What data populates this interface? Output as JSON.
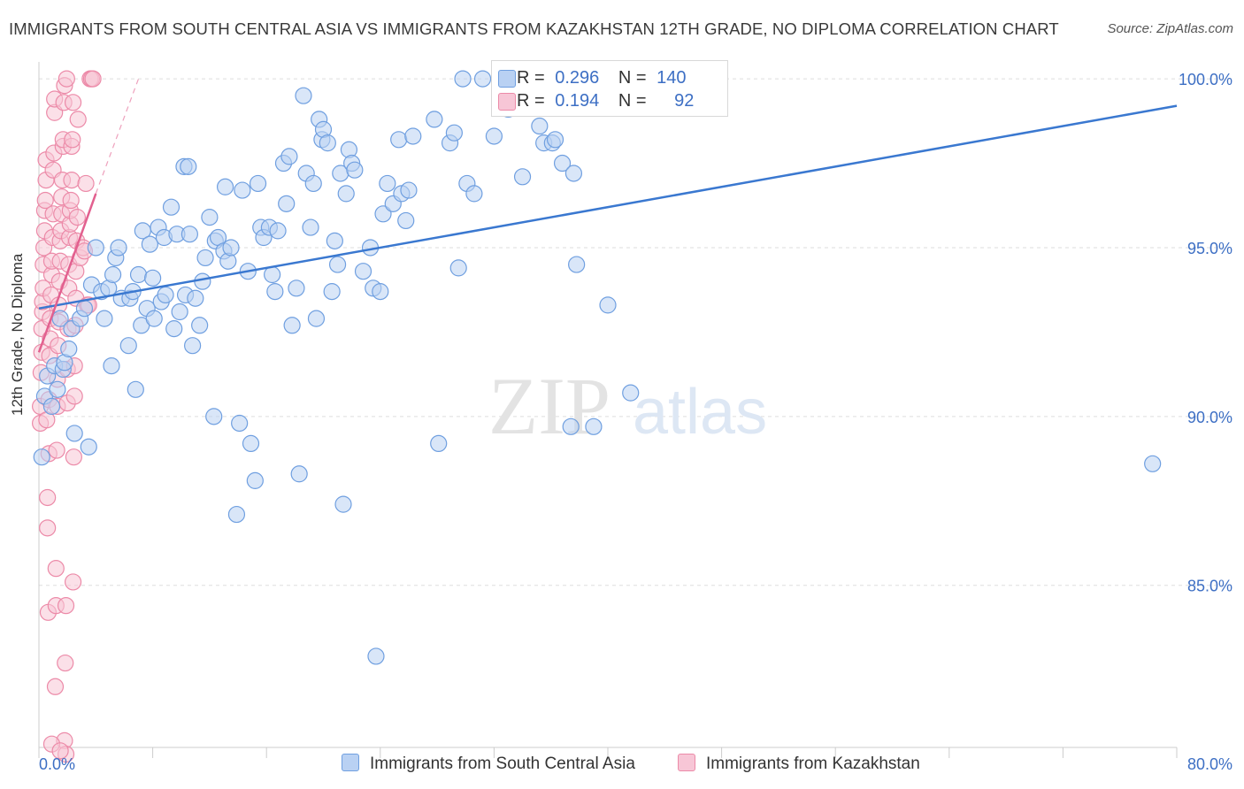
{
  "title": "IMMIGRANTS FROM SOUTH CENTRAL ASIA VS IMMIGRANTS FROM KAZAKHSTAN 12TH GRADE, NO DIPLOMA CORRELATION CHART",
  "source": "Source: ZipAtlas.com",
  "watermark": {
    "zip": "ZIP",
    "atlas": "atlas"
  },
  "colors": {
    "blue": "#6f9fe0",
    "blue_fill": "#b9d1f3",
    "blue_line": "#3a78d0",
    "pink": "#ec8aa8",
    "pink_fill": "#f7c6d6",
    "pink_line": "#e2608f",
    "axis_label": "#3d6fc4",
    "grid": "#dddddd"
  },
  "legend": {
    "rows": [
      {
        "r_label": "R =",
        "r_value": "0.296",
        "n_label": "N =",
        "n_value": "140",
        "swatch": "blue"
      },
      {
        "r_label": "R =",
        "r_value": "0.194",
        "n_label": "N =",
        "n_value": "92",
        "swatch": "pink"
      }
    ]
  },
  "bottom_legend": [
    {
      "label": "Immigrants from South Central Asia",
      "swatch": "blue"
    },
    {
      "label": "Immigrants from Kazakhstan",
      "swatch": "pink"
    }
  ],
  "chart_data": {
    "type": "scatter",
    "title": "IMMIGRANTS FROM SOUTH CENTRAL ASIA VS IMMIGRANTS FROM KAZAKHSTAN 12TH GRADE, NO DIPLOMA CORRELATION CHART",
    "xlabel": "",
    "ylabel": "12th Grade, No Diploma",
    "xlim": [
      0,
      80
    ],
    "ylim": [
      80.2,
      100.5
    ],
    "x_tick_labels": [
      "0.0%",
      "80.0%"
    ],
    "y_ticks": [
      85,
      90,
      95,
      100
    ],
    "y_tick_labels": [
      "85.0%",
      "90.0%",
      "95.0%",
      "100.0%"
    ],
    "series": [
      {
        "name": "Immigrants from South Central Asia",
        "color": "blue",
        "trend": {
          "x": [
            0,
            80
          ],
          "y": [
            93.2,
            99.2
          ],
          "style": "solid"
        },
        "points": [
          [
            0.2,
            88.8
          ],
          [
            0.4,
            90.6
          ],
          [
            0.6,
            91.2
          ],
          [
            0.9,
            90.3
          ],
          [
            1.1,
            91.5
          ],
          [
            1.3,
            90.8
          ],
          [
            1.5,
            92.9
          ],
          [
            1.7,
            91.4
          ],
          [
            1.8,
            91.6
          ],
          [
            2.1,
            92.0
          ],
          [
            2.3,
            92.6
          ],
          [
            2.5,
            89.5
          ],
          [
            2.9,
            92.9
          ],
          [
            3.2,
            93.2
          ],
          [
            3.5,
            89.1
          ],
          [
            3.7,
            93.9
          ],
          [
            4.0,
            95.0
          ],
          [
            4.4,
            93.7
          ],
          [
            4.6,
            92.9
          ],
          [
            4.9,
            93.8
          ],
          [
            5.1,
            91.5
          ],
          [
            5.2,
            94.2
          ],
          [
            5.4,
            94.7
          ],
          [
            5.6,
            95.0
          ],
          [
            5.8,
            93.5
          ],
          [
            6.4,
            93.5
          ],
          [
            6.3,
            92.1
          ],
          [
            6.6,
            93.7
          ],
          [
            6.8,
            90.8
          ],
          [
            7.0,
            94.2
          ],
          [
            7.2,
            92.7
          ],
          [
            7.3,
            95.5
          ],
          [
            7.6,
            93.2
          ],
          [
            7.8,
            95.1
          ],
          [
            8.0,
            94.1
          ],
          [
            8.1,
            92.9
          ],
          [
            8.4,
            95.6
          ],
          [
            8.6,
            93.4
          ],
          [
            8.8,
            95.3
          ],
          [
            8.9,
            93.6
          ],
          [
            9.3,
            96.2
          ],
          [
            9.5,
            92.6
          ],
          [
            9.7,
            95.4
          ],
          [
            9.9,
            93.1
          ],
          [
            10.2,
            97.4
          ],
          [
            10.3,
            93.6
          ],
          [
            10.5,
            97.4
          ],
          [
            10.6,
            95.4
          ],
          [
            10.8,
            92.1
          ],
          [
            11.0,
            93.5
          ],
          [
            11.3,
            92.7
          ],
          [
            11.5,
            94.0
          ],
          [
            11.7,
            94.7
          ],
          [
            12.0,
            95.9
          ],
          [
            12.3,
            90.0
          ],
          [
            12.4,
            95.2
          ],
          [
            12.6,
            95.3
          ],
          [
            13.0,
            94.9
          ],
          [
            13.1,
            96.8
          ],
          [
            13.3,
            94.6
          ],
          [
            13.5,
            95.0
          ],
          [
            13.9,
            87.1
          ],
          [
            14.1,
            89.8
          ],
          [
            14.3,
            96.7
          ],
          [
            14.7,
            94.3
          ],
          [
            14.9,
            89.2
          ],
          [
            15.2,
            88.1
          ],
          [
            15.4,
            96.9
          ],
          [
            15.6,
            95.6
          ],
          [
            15.8,
            95.3
          ],
          [
            16.2,
            95.6
          ],
          [
            16.4,
            94.2
          ],
          [
            16.6,
            93.7
          ],
          [
            16.8,
            95.5
          ],
          [
            17.2,
            97.5
          ],
          [
            17.4,
            96.3
          ],
          [
            17.6,
            97.7
          ],
          [
            17.8,
            92.7
          ],
          [
            18.1,
            93.8
          ],
          [
            18.3,
            88.3
          ],
          [
            18.6,
            99.5
          ],
          [
            18.8,
            97.2
          ],
          [
            19.1,
            95.6
          ],
          [
            19.3,
            96.9
          ],
          [
            19.5,
            92.9
          ],
          [
            19.7,
            98.8
          ],
          [
            19.9,
            98.2
          ],
          [
            20.0,
            98.5
          ],
          [
            20.3,
            98.1
          ],
          [
            20.6,
            93.7
          ],
          [
            20.8,
            95.2
          ],
          [
            21.0,
            94.5
          ],
          [
            21.2,
            97.2
          ],
          [
            21.4,
            87.4
          ],
          [
            21.6,
            96.6
          ],
          [
            21.8,
            97.9
          ],
          [
            22.0,
            97.5
          ],
          [
            22.2,
            97.3
          ],
          [
            22.8,
            94.3
          ],
          [
            23.3,
            95.0
          ],
          [
            23.5,
            93.8
          ],
          [
            23.7,
            82.9
          ],
          [
            24.0,
            93.7
          ],
          [
            24.2,
            96.0
          ],
          [
            24.5,
            96.9
          ],
          [
            24.9,
            96.3
          ],
          [
            25.3,
            98.2
          ],
          [
            25.5,
            96.6
          ],
          [
            25.8,
            95.8
          ],
          [
            26.0,
            96.7
          ],
          [
            26.3,
            98.3
          ],
          [
            27.8,
            98.8
          ],
          [
            28.1,
            89.2
          ],
          [
            28.9,
            98.1
          ],
          [
            29.2,
            98.4
          ],
          [
            29.5,
            94.4
          ],
          [
            29.8,
            100.0
          ],
          [
            30.1,
            96.9
          ],
          [
            30.6,
            96.6
          ],
          [
            31.2,
            100.0
          ],
          [
            32.0,
            98.3
          ],
          [
            33.0,
            99.1
          ],
          [
            34.0,
            97.1
          ],
          [
            35.2,
            98.6
          ],
          [
            35.5,
            98.1
          ],
          [
            36.1,
            98.1
          ],
          [
            36.3,
            98.2
          ],
          [
            36.8,
            97.5
          ],
          [
            37.4,
            89.7
          ],
          [
            37.6,
            97.2
          ],
          [
            37.8,
            94.5
          ],
          [
            39.0,
            89.7
          ],
          [
            40.0,
            93.3
          ],
          [
            41.6,
            90.7
          ],
          [
            78.3,
            88.6
          ]
        ]
      },
      {
        "name": "Immigrants from Kazakhstan",
        "color": "pink",
        "trend": {
          "x": [
            0,
            4.0
          ],
          "y": [
            91.9,
            96.6
          ],
          "style": "solid",
          "extension": {
            "x": [
              4.0,
              7.0
            ],
            "y": [
              96.6,
              100.0
            ],
            "style": "dashed"
          }
        },
        "points": [
          [
            0.1,
            89.8
          ],
          [
            0.1,
            90.3
          ],
          [
            0.15,
            91.3
          ],
          [
            0.2,
            91.9
          ],
          [
            0.2,
            92.6
          ],
          [
            0.25,
            93.1
          ],
          [
            0.25,
            93.4
          ],
          [
            0.3,
            93.8
          ],
          [
            0.3,
            94.5
          ],
          [
            0.35,
            95.0
          ],
          [
            0.4,
            95.5
          ],
          [
            0.4,
            96.1
          ],
          [
            0.45,
            96.4
          ],
          [
            0.5,
            97.0
          ],
          [
            0.5,
            97.6
          ],
          [
            0.55,
            89.9
          ],
          [
            0.6,
            86.7
          ],
          [
            0.6,
            87.6
          ],
          [
            0.65,
            84.2
          ],
          [
            0.7,
            88.9
          ],
          [
            0.7,
            90.5
          ],
          [
            0.75,
            91.8
          ],
          [
            0.8,
            92.3
          ],
          [
            0.8,
            92.9
          ],
          [
            0.85,
            93.6
          ],
          [
            0.9,
            94.2
          ],
          [
            0.9,
            94.6
          ],
          [
            0.95,
            95.3
          ],
          [
            1.0,
            96.0
          ],
          [
            1.0,
            97.3
          ],
          [
            1.05,
            97.8
          ],
          [
            1.1,
            99.0
          ],
          [
            1.1,
            99.4
          ],
          [
            1.15,
            82.0
          ],
          [
            1.2,
            85.5
          ],
          [
            1.2,
            84.4
          ],
          [
            1.25,
            89.0
          ],
          [
            1.3,
            90.3
          ],
          [
            1.3,
            91.1
          ],
          [
            1.35,
            92.1
          ],
          [
            1.4,
            92.8
          ],
          [
            1.4,
            93.3
          ],
          [
            1.45,
            94.0
          ],
          [
            1.5,
            94.6
          ],
          [
            1.5,
            95.2
          ],
          [
            1.55,
            95.5
          ],
          [
            1.6,
            96.0
          ],
          [
            1.6,
            96.5
          ],
          [
            1.65,
            97.0
          ],
          [
            1.7,
            98.0
          ],
          [
            1.7,
            98.2
          ],
          [
            1.75,
            99.3
          ],
          [
            1.8,
            99.8
          ],
          [
            1.8,
            80.4
          ],
          [
            1.85,
            82.7
          ],
          [
            1.9,
            84.4
          ],
          [
            1.9,
            80.0
          ],
          [
            1.95,
            100.0
          ],
          [
            2.0,
            90.4
          ],
          [
            2.0,
            91.4
          ],
          [
            2.05,
            92.6
          ],
          [
            2.1,
            93.8
          ],
          [
            2.1,
            94.5
          ],
          [
            2.15,
            95.3
          ],
          [
            2.2,
            95.7
          ],
          [
            2.2,
            96.1
          ],
          [
            2.25,
            96.4
          ],
          [
            2.3,
            97.0
          ],
          [
            2.3,
            98.0
          ],
          [
            2.35,
            98.2
          ],
          [
            2.4,
            99.3
          ],
          [
            2.4,
            85.1
          ],
          [
            2.45,
            88.8
          ],
          [
            2.5,
            90.6
          ],
          [
            2.5,
            91.5
          ],
          [
            2.55,
            92.7
          ],
          [
            2.6,
            93.5
          ],
          [
            2.6,
            94.3
          ],
          [
            2.65,
            95.2
          ],
          [
            2.7,
            95.9
          ],
          [
            2.75,
            98.8
          ],
          [
            2.9,
            94.7
          ],
          [
            3.1,
            95.0
          ],
          [
            3.2,
            94.9
          ],
          [
            3.3,
            96.9
          ],
          [
            3.4,
            93.3
          ],
          [
            3.5,
            93.3
          ],
          [
            3.6,
            100.0
          ],
          [
            3.7,
            100.0
          ],
          [
            3.8,
            100.0
          ],
          [
            0.9,
            80.3
          ],
          [
            1.5,
            80.1
          ]
        ]
      }
    ]
  }
}
